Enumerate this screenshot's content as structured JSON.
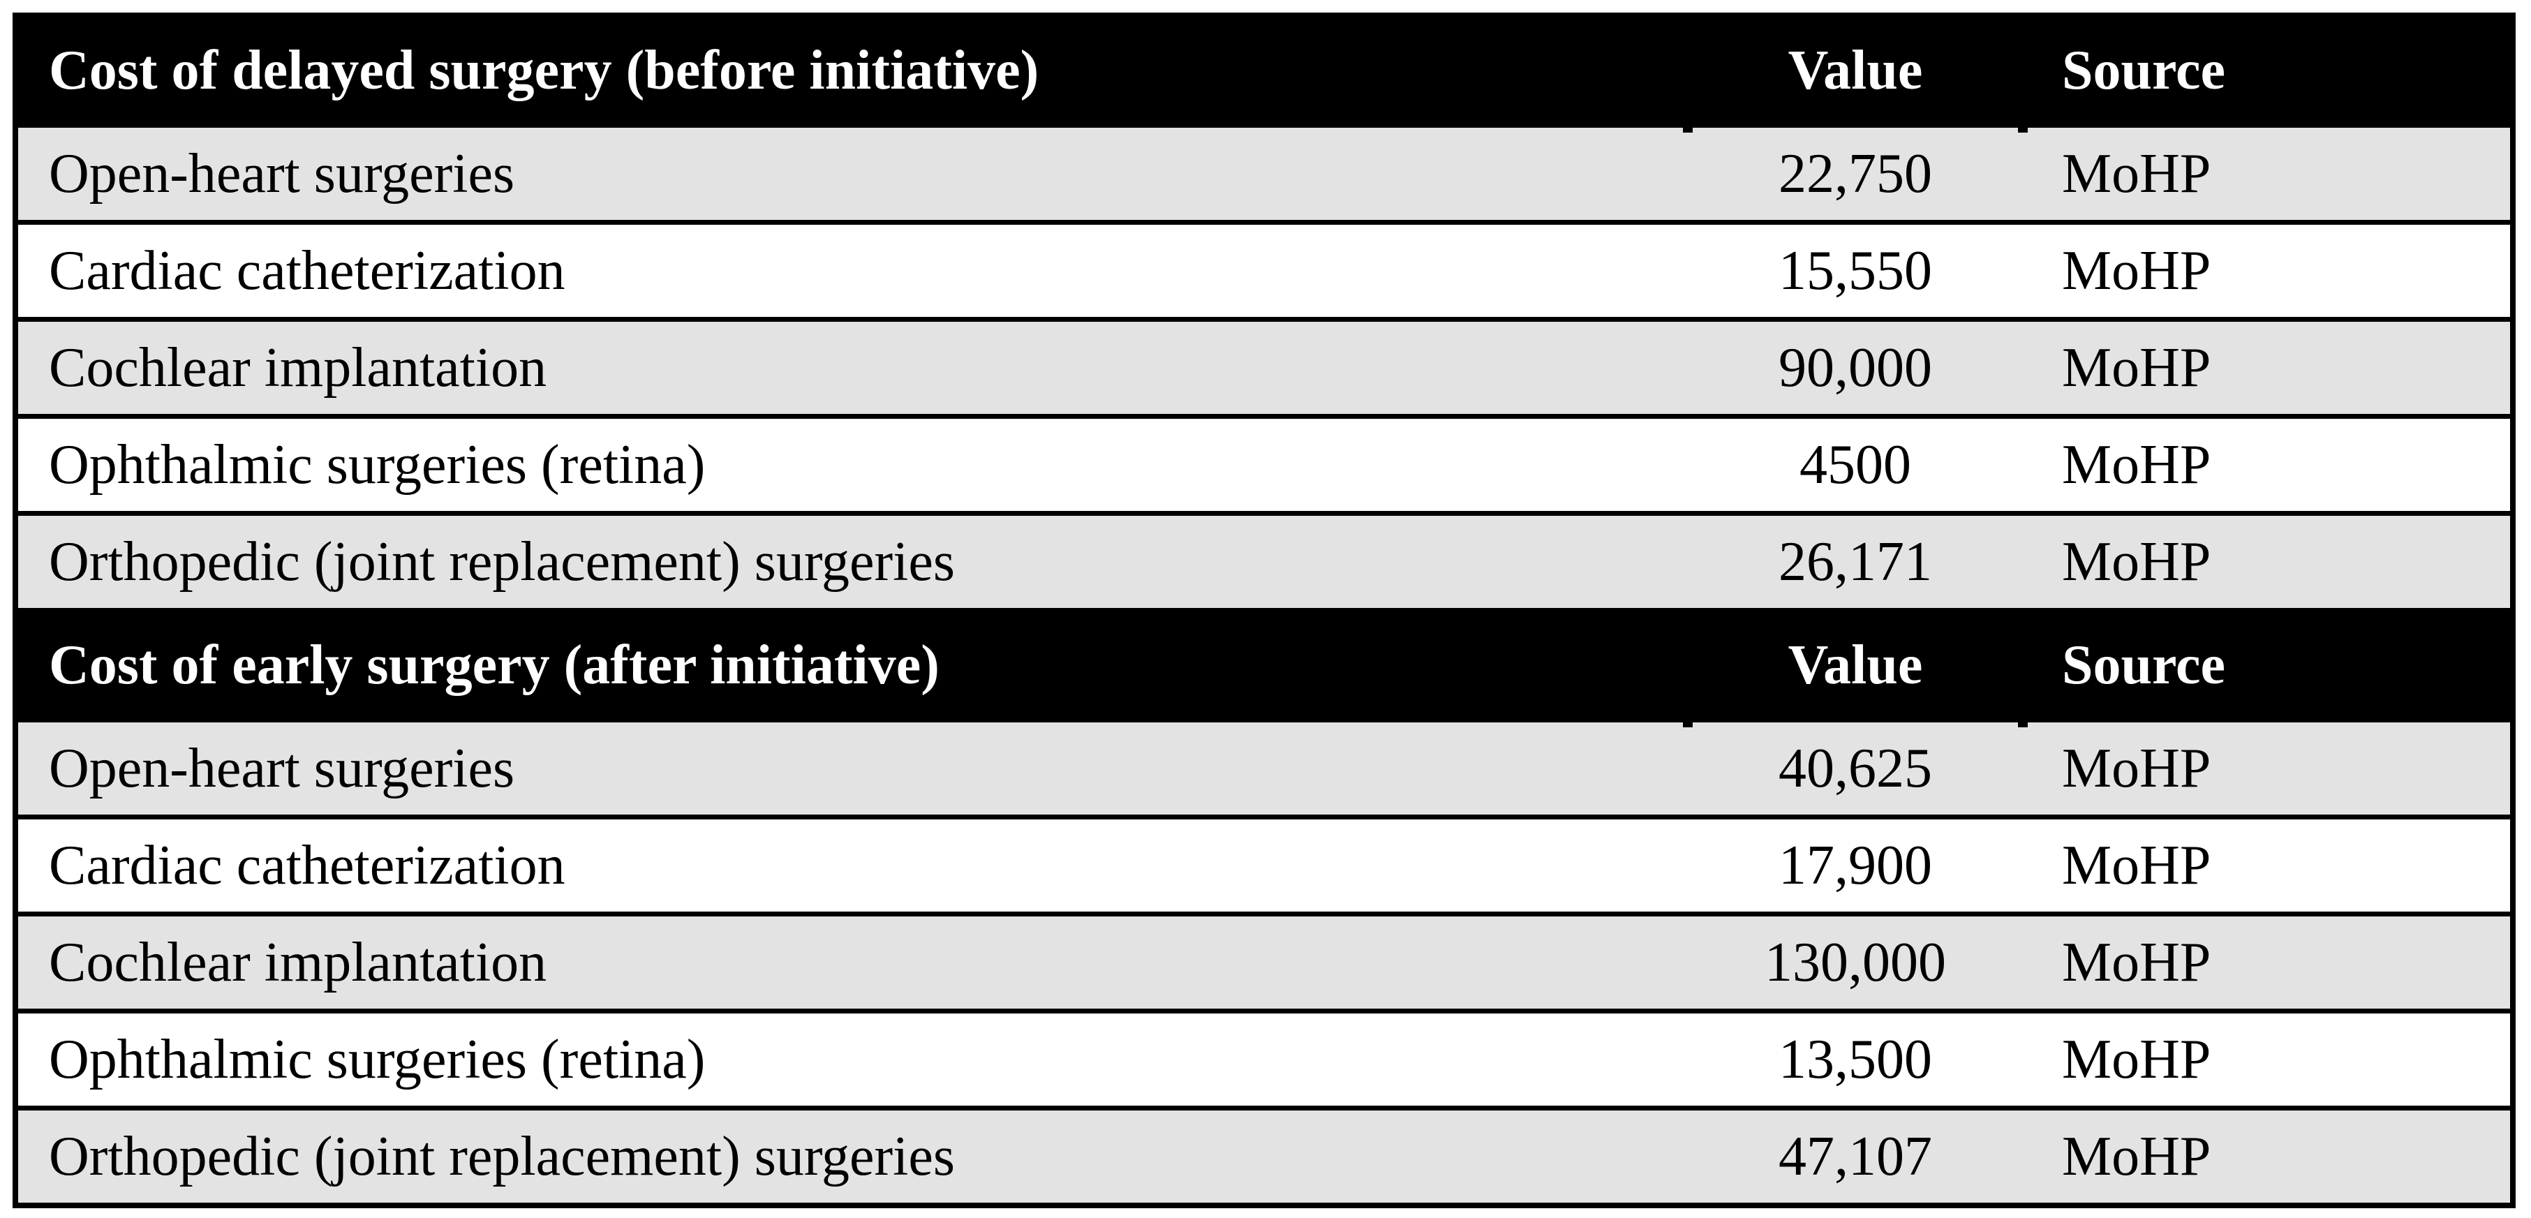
{
  "table": {
    "colors": {
      "border": "#000000",
      "header_bg": "#000000",
      "header_text": "#ffffff",
      "zebra_row_bg": "#e3e3e3",
      "plain_row_bg": "#ffffff",
      "body_text": "#000000"
    },
    "sections": [
      {
        "title": "Cost of delayed surgery (before initiative)",
        "value_header": "Value",
        "source_header": "Source",
        "rows": [
          {
            "label": "Open-heart surgeries",
            "value": "22,750",
            "source": "MoHP"
          },
          {
            "label": "Cardiac catheterization",
            "value": "15,550",
            "source": "MoHP"
          },
          {
            "label": "Cochlear implantation",
            "value": "90,000",
            "source": "MoHP"
          },
          {
            "label": "Ophthalmic surgeries (retina)",
            "value": "4500",
            "source": "MoHP"
          },
          {
            "label": "Orthopedic (joint replacement) surgeries",
            "value": "26,171",
            "source": "MoHP"
          }
        ]
      },
      {
        "title": "Cost of early surgery (after initiative)",
        "value_header": "Value",
        "source_header": "Source",
        "rows": [
          {
            "label": "Open-heart surgeries",
            "value": "40,625",
            "source": "MoHP"
          },
          {
            "label": "Cardiac catheterization",
            "value": "17,900",
            "source": "MoHP"
          },
          {
            "label": "Cochlear implantation",
            "value": "130,000",
            "source": "MoHP"
          },
          {
            "label": "Ophthalmic surgeries (retina)",
            "value": "13,500",
            "source": "MoHP"
          },
          {
            "label": "Orthopedic (joint replacement) surgeries",
            "value": "47,107",
            "source": "MoHP"
          }
        ]
      }
    ]
  }
}
